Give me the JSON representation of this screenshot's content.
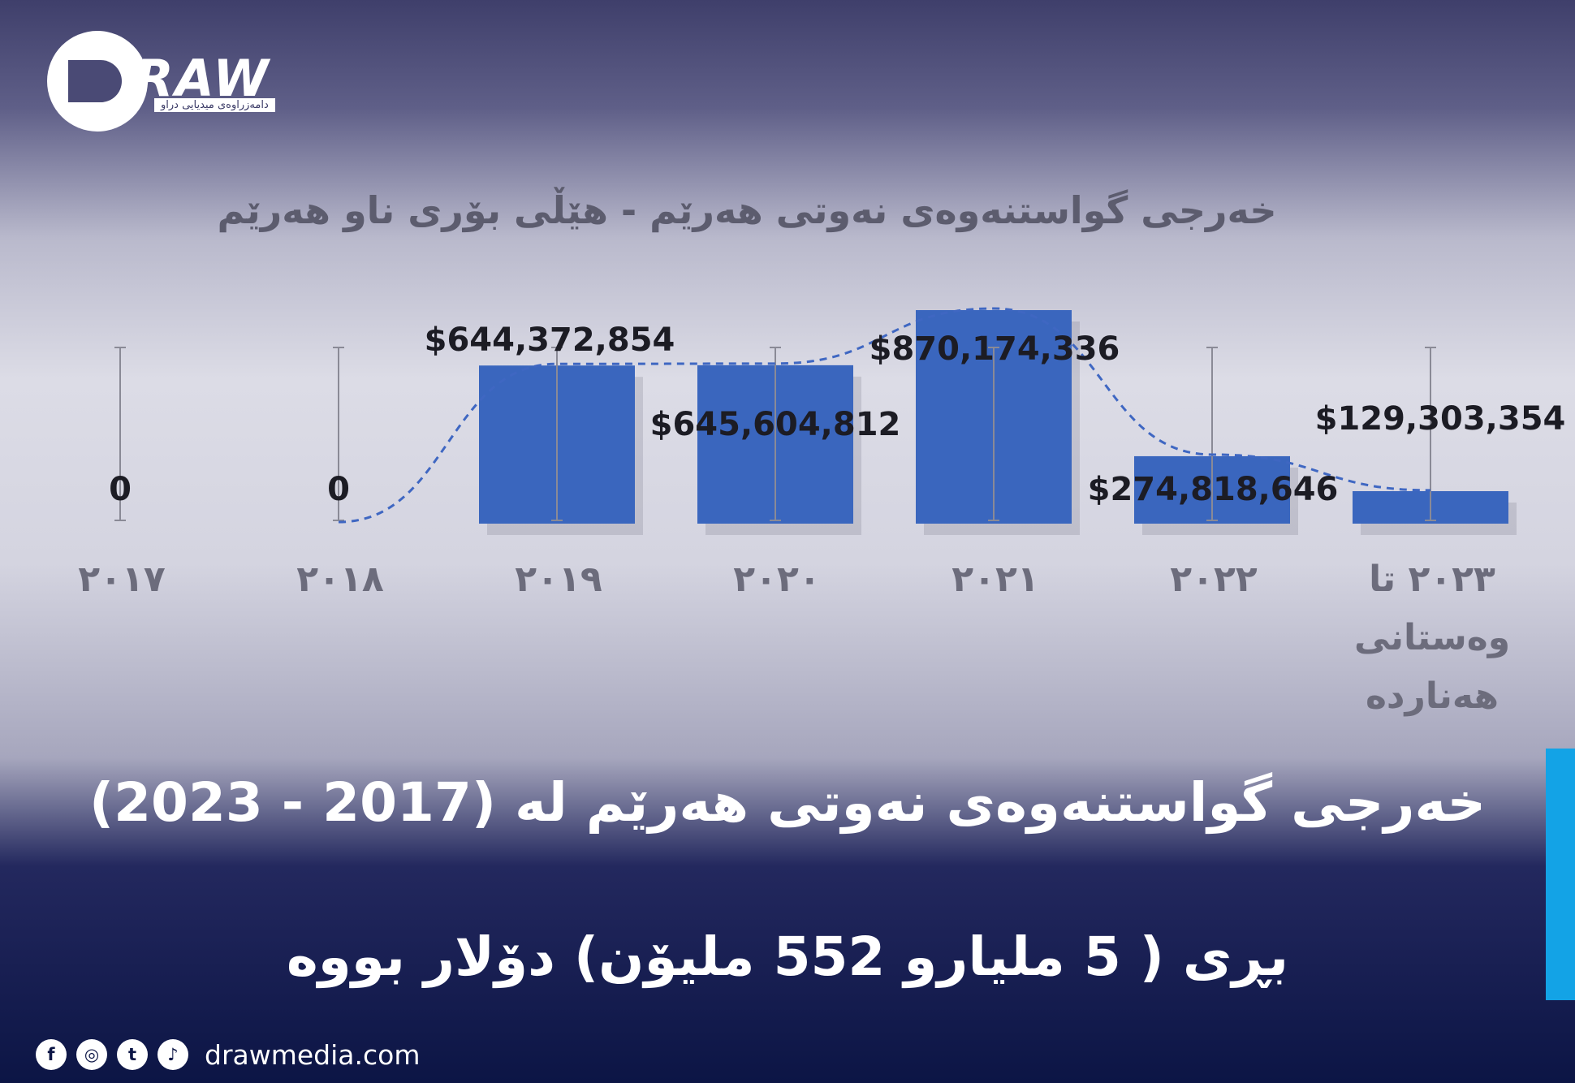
{
  "brand": {
    "logo_text": "RAW",
    "tagline": "دامەزراوەی میدیایی دراو"
  },
  "headline": {
    "line1": "خەرجی گواستنەوەی نەوتی هەرێم لە (2017 - 2023)",
    "line2": "بڕی ( 5 مليارو 552 مليۆن) دۆلار بووه"
  },
  "footer": {
    "website": "drawmedia.com",
    "social": [
      {
        "icon": "facebook-icon",
        "glyph": "f"
      },
      {
        "icon": "instagram-icon",
        "glyph": "◎"
      },
      {
        "icon": "twitter-icon",
        "glyph": "t"
      },
      {
        "icon": "tiktok-icon",
        "glyph": "♪"
      }
    ]
  },
  "colors": {
    "bar": "#3a66be",
    "accent": "#13a3e6",
    "trend": "#3f67c2",
    "navy": "#0c1545"
  },
  "chart_data": {
    "type": "bar",
    "title": "خەرجی گواستنەوەی نەوتی هەرێم - هێڵی بۆری ناو هەرێم",
    "categories": [
      "٢٠١٧",
      "٢٠١٨",
      "٢٠١٩",
      "٢٠٢٠",
      "٢٠٢١",
      "٢٠٢٢",
      "٢٠٢٣ تا وەستانی هەناردە"
    ],
    "values": [
      0,
      0,
      644372854,
      645604812,
      870174336,
      274818646,
      129303354
    ],
    "data_labels": [
      "0",
      "0",
      "$644,372,854",
      "$645,604,812",
      "$870,174,336",
      "$274,818,646",
      "$129,303,354"
    ],
    "ylim": [
      0,
      870174336
    ],
    "trend_line": "dashed",
    "error_bars": true,
    "grid": false,
    "legend": "none"
  }
}
